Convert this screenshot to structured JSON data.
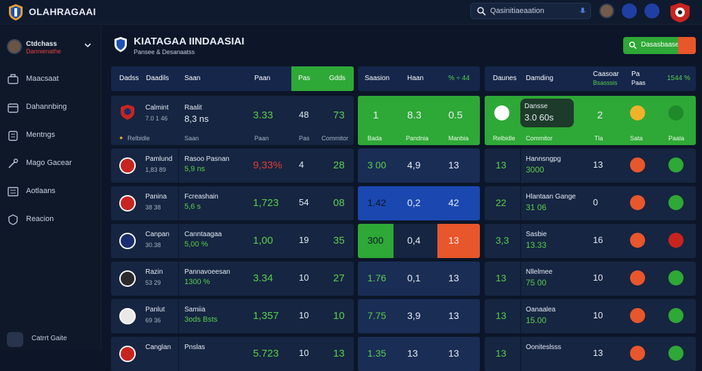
{
  "app": {
    "title": "OLAHRAGAAI"
  },
  "topbar": {
    "search_placeholder": "Qasinitiaeaation"
  },
  "user": {
    "name": "Ctdchass",
    "status": "Dannienathe"
  },
  "sidebar": {
    "items": [
      {
        "label": "Maacsaat",
        "icon": "briefcase-icon"
      },
      {
        "label": "Dahannbing",
        "icon": "calendar-icon"
      },
      {
        "label": "Mentngs",
        "icon": "people-icon"
      },
      {
        "label": "Mago Gacear",
        "icon": "wrench-icon"
      },
      {
        "label": "Aotlaans",
        "icon": "list-icon"
      },
      {
        "label": "Reacion",
        "icon": "shield-icon"
      }
    ],
    "bottom_label": "Catrrt Gaite"
  },
  "page": {
    "title": "KIATAGAA IINDAASIAI",
    "subtitle": "Pansee & Desanaatss",
    "action_label": "Dasasbaase"
  },
  "table": {
    "headers_left": [
      "Dadss",
      "Daadils",
      "Saan",
      "Paan",
      "Pas",
      "Gdds"
    ],
    "headers_mid": [
      "Saasion",
      "Haan",
      "% ÷ 44"
    ],
    "headers_right": [
      "Daunes",
      "Damding",
      "Caasoar",
      "Pa",
      "1544 %"
    ],
    "headers_right_sub": [
      "Bsasssis",
      "Paas"
    ],
    "highlight_row": {
      "team": "Calmint",
      "team_sub": "7.0 1 46",
      "score_label": "Raalit",
      "score": "8,3 ns",
      "val": "3.33",
      "n1": "48",
      "n2": "73",
      "mid": [
        "1",
        "8.3",
        "0.5"
      ],
      "mid_sub": [
        "Bada",
        "Pandnia",
        "Manbia"
      ],
      "right_name": "Dansse",
      "right_val": "3.0 60s",
      "right_n": "2",
      "right_sub": [
        "Relbidle",
        "Commitor",
        "Tla",
        "Sata",
        "Paala"
      ]
    },
    "rows": [
      {
        "team": "Pamlund",
        "team_sub": "1,83 89",
        "name": "Rasoo Pasnan",
        "score": "5,9 ns",
        "val": "9,33%",
        "val_color": "red",
        "n1": "4",
        "n2": "28",
        "mid": [
          "3 00",
          "4,9",
          "13"
        ],
        "r_num": "13",
        "r_name": "Hannsngpg",
        "r_val": "3000",
        "r_n": "13"
      },
      {
        "team": "Panina",
        "team_sub": "38 38",
        "name": "Fcreashain",
        "score": "5,6 s",
        "val": "1,723",
        "val_color": "green",
        "n1": "54",
        "n2": "08",
        "mid": [
          "1.42",
          "0,2",
          "42"
        ],
        "r_num": "22",
        "r_name": "Hlantaan Gange",
        "r_val": "31 06",
        "r_n": "0"
      },
      {
        "team": "Canpan",
        "team_sub": "30.38",
        "name": "Canntaagaa",
        "score": "5,00 %",
        "val": "1,00",
        "val_color": "green",
        "n1": "19",
        "n2": "35",
        "mid": [
          "300",
          "0,4",
          "13"
        ],
        "r_num": "3,3",
        "r_name": "Sasbie",
        "r_val": "13.33",
        "r_n": "16"
      },
      {
        "team": "Razin",
        "team_sub": "53 29",
        "name": "Pannavoeesan",
        "score": "1300 %",
        "val": "3.34",
        "val_color": "green",
        "n1": "10",
        "n2": "27",
        "mid": [
          "1.76",
          "0,1",
          "13"
        ],
        "r_num": "13",
        "r_name": "Nllelmee",
        "r_val": "75 00",
        "r_n": "10"
      },
      {
        "team": "Panlut",
        "team_sub": "69 36",
        "name": "Samiia",
        "score": "3ods Bsts",
        "val": "1,357",
        "val_color": "green",
        "n1": "10",
        "n2": "10",
        "mid": [
          "7.75",
          "3,9",
          "13"
        ],
        "r_num": "13",
        "r_name": "Oanaalea",
        "r_val": "15.00",
        "r_n": "10"
      },
      {
        "team": "Canglan",
        "team_sub": "",
        "name": "Pnslas",
        "score": "",
        "val": "5.723",
        "val_color": "green",
        "n1": "10",
        "n2": "13",
        "mid": [
          "1.35",
          "13",
          "13"
        ],
        "r_num": "13",
        "r_name": "Ooniteslsss",
        "r_val": "",
        "r_n": "13"
      }
    ]
  },
  "colors": {
    "green": "#2ea836",
    "orange": "#e8562b",
    "blue": "#1b48b0",
    "red": "#e53b3b"
  }
}
